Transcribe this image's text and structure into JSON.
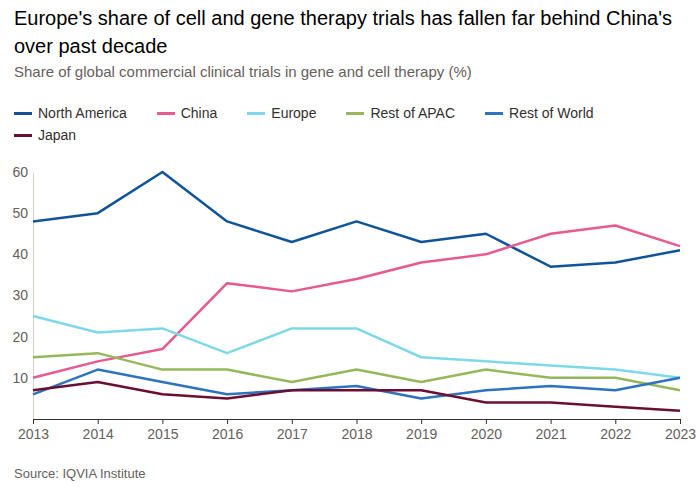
{
  "chart_data": {
    "type": "line",
    "title": "Europe's share of cell and gene therapy trials has fallen far behind China's over past decade",
    "subtitle": "Share of global commercial clinical trials in gene and cell therapy (%)",
    "source": "Source: IQVIA Institute",
    "x": [
      2013,
      2014,
      2015,
      2016,
      2017,
      2018,
      2019,
      2020,
      2021,
      2022,
      2023
    ],
    "xlim": [
      2013,
      2023
    ],
    "xticks": [
      2013,
      2014,
      2015,
      2016,
      2017,
      2018,
      2019,
      2020,
      2021,
      2022,
      2023
    ],
    "ylim": [
      0,
      60
    ],
    "yticks": [
      10,
      20,
      30,
      40,
      50,
      60
    ],
    "grid": false,
    "legend": "top-left",
    "series": [
      {
        "name": "North America",
        "color": "#0f5499",
        "values": [
          48,
          50,
          60,
          48,
          43,
          48,
          43,
          45,
          37,
          38,
          41
        ]
      },
      {
        "name": "China",
        "color": "#e8598e",
        "values": [
          10,
          14,
          17,
          33,
          31,
          34,
          38,
          40,
          45,
          47,
          42
        ]
      },
      {
        "name": "Europe",
        "color": "#7fd8e8",
        "values": [
          25,
          21,
          22,
          16,
          22,
          22,
          15,
          14,
          13,
          12,
          10
        ]
      },
      {
        "name": "Rest of APAC",
        "color": "#96b85a",
        "values": [
          15,
          16,
          12,
          12,
          9,
          12,
          9,
          12,
          10,
          10,
          7
        ]
      },
      {
        "name": "Rest of World",
        "color": "#2e72c2",
        "values": [
          6,
          12,
          9,
          6,
          7,
          8,
          5,
          7,
          8,
          7,
          10
        ]
      },
      {
        "name": "Japan",
        "color": "#6b0f32",
        "values": [
          7,
          9,
          6,
          5,
          7,
          7,
          7,
          4,
          4,
          3,
          2
        ]
      }
    ]
  }
}
